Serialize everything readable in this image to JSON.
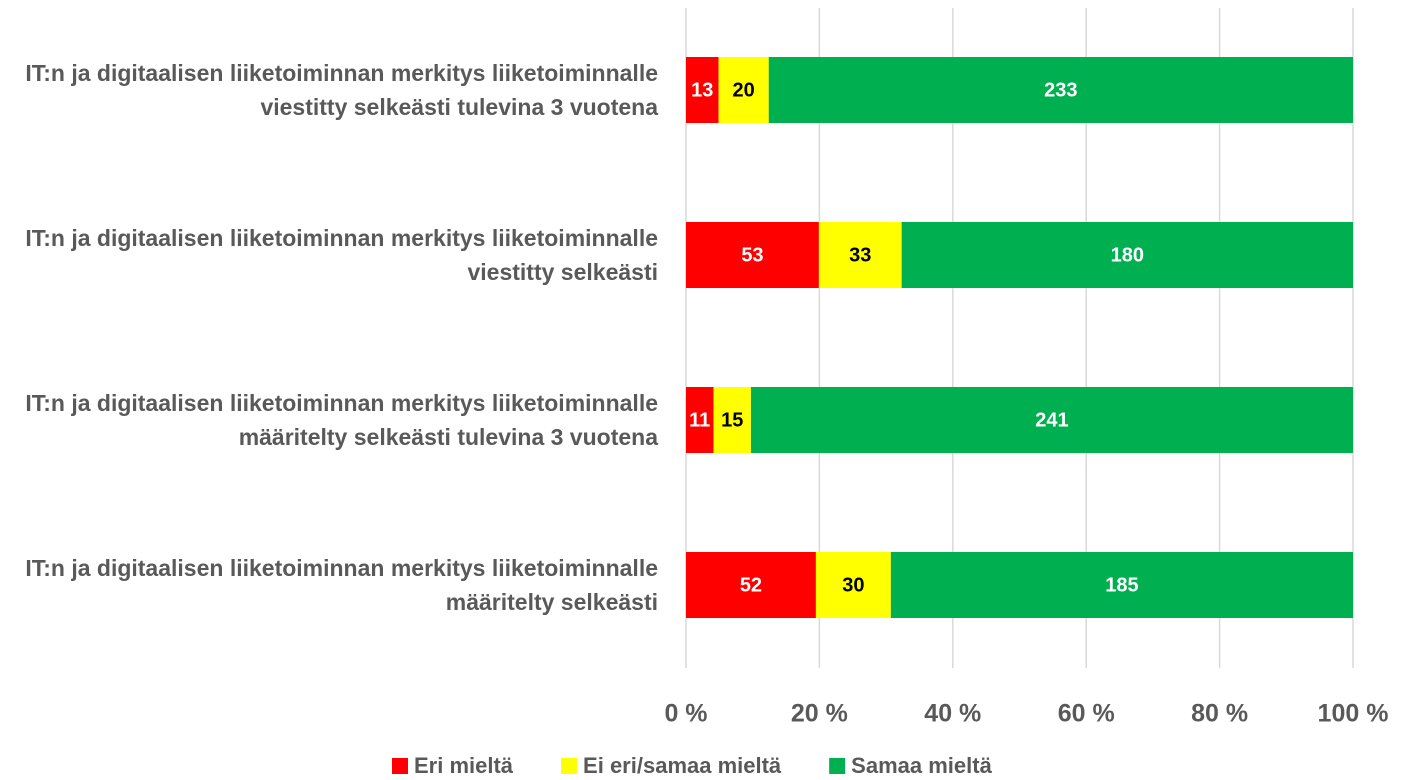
{
  "chart_data": {
    "type": "bar",
    "orientation": "horizontal",
    "percent_stacked": true,
    "categories": [
      "IT:n ja digitaalisen liiketoiminnan merkitys liiketoiminnalle viestitty selkeästi tulevina 3 vuotena",
      "IT:n ja digitaalisen liiketoiminnan merkitys liiketoiminnalle viestitty selkeästi",
      "IT:n ja digitaalisen liiketoiminnan merkitys liiketoiminnalle määritelty selkeästi tulevina 3 vuotena",
      "IT:n ja digitaalisen liiketoiminnan merkitys liiketoiminnalle määritelty selkeästi"
    ],
    "series": [
      {
        "name": "Eri mieltä",
        "color": "#ff0000",
        "label_color": "#ffffff",
        "values": [
          13,
          53,
          11,
          52
        ]
      },
      {
        "name": "Ei eri/samaa mieltä",
        "color": "#ffff00",
        "label_color": "#000000",
        "values": [
          20,
          33,
          15,
          30
        ]
      },
      {
        "name": "Samaa mieltä",
        "color": "#00b050",
        "label_color": "#ffffff",
        "values": [
          233,
          180,
          241,
          185
        ]
      }
    ],
    "xlim": [
      0,
      100
    ],
    "xticks": [
      {
        "value": 0,
        "label": "0 %"
      },
      {
        "value": 20,
        "label": "20 %"
      },
      {
        "value": 40,
        "label": "40 %"
      },
      {
        "value": 60,
        "label": "60 %"
      },
      {
        "value": 80,
        "label": "80 %"
      },
      {
        "value": 100,
        "label": "100 %"
      }
    ],
    "grid": true,
    "legend": "bottom"
  }
}
